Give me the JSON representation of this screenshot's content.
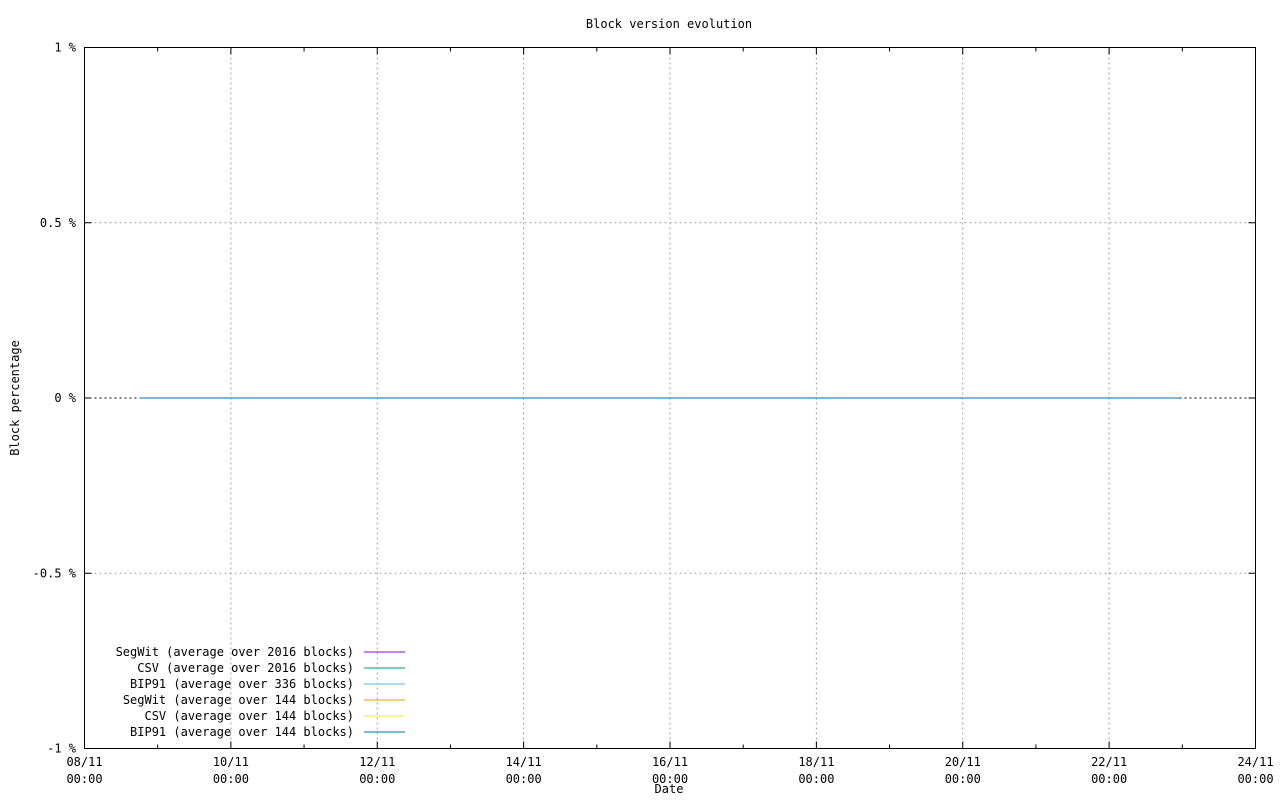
{
  "chart_data": {
    "type": "line",
    "title": "Block version evolution",
    "xlabel": "Date",
    "ylabel": "Block percentage",
    "xlim": [
      "08/11 00:00",
      "24/11 00:00"
    ],
    "ylim": [
      -1,
      1
    ],
    "x_ticks": [
      {
        "day": "08/11",
        "time": "00:00"
      },
      {
        "day": "10/11",
        "time": "00:00"
      },
      {
        "day": "12/11",
        "time": "00:00"
      },
      {
        "day": "14/11",
        "time": "00:00"
      },
      {
        "day": "16/11",
        "time": "00:00"
      },
      {
        "day": "18/11",
        "time": "00:00"
      },
      {
        "day": "20/11",
        "time": "00:00"
      },
      {
        "day": "22/11",
        "time": "00:00"
      },
      {
        "day": "24/11",
        "time": "00:00"
      }
    ],
    "y_ticks": [
      {
        "value": 1,
        "label": "1 %"
      },
      {
        "value": 0.5,
        "label": "0.5 %"
      },
      {
        "value": 0,
        "label": "0 %"
      },
      {
        "value": -0.5,
        "label": "-0.5 %"
      },
      {
        "value": -1,
        "label": "-1 %"
      }
    ],
    "grid": true,
    "legend_position": "bottom-left",
    "series": [
      {
        "name": "SegWit (average over 2016 blocks)",
        "color": "#9400d3",
        "x": [],
        "y": []
      },
      {
        "name": "CSV (average over 2016 blocks)",
        "color": "#009e73",
        "x": [],
        "y": []
      },
      {
        "name": "BIP91 (average over 336 blocks)",
        "color": "#56b4e9",
        "x": [],
        "y": []
      },
      {
        "name": "SegWit (average over 144 blocks)",
        "color": "#e69f00",
        "x": [],
        "y": []
      },
      {
        "name": "CSV (average over 144 blocks)",
        "color": "#f0e442",
        "x": [],
        "y": []
      },
      {
        "name": "BIP91 (average over 144 blocks)",
        "color": "#0072b2",
        "x": [
          "08/11 18:00",
          "22/11 23:00"
        ],
        "y": [
          0,
          0
        ]
      }
    ]
  }
}
